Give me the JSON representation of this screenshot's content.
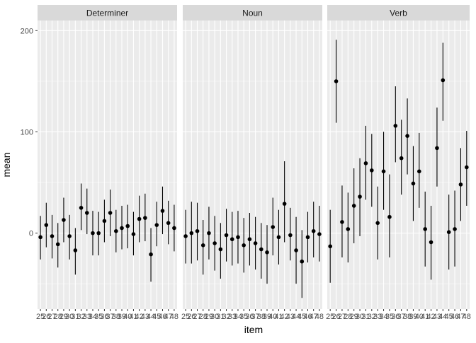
{
  "chart_data": {
    "type": "scatter",
    "subtype": "pointrange-facet",
    "xlabel": "item",
    "ylabel": "mean",
    "x_ticks": [
      "25",
      "26",
      "27",
      "28",
      "29",
      "30",
      "31",
      "32",
      "33",
      "34",
      "35",
      "36",
      "37",
      "38",
      "39",
      "40",
      "41",
      "42",
      "43",
      "44",
      "45",
      "46",
      "47",
      "48"
    ],
    "y_ticks": [
      0,
      100,
      200
    ],
    "ylim": [
      -75,
      210
    ],
    "grid": true,
    "colors": {
      "panel": "#ebebeb",
      "grid_major": "#ffffff",
      "strip": "#d9d9d9",
      "point": "#000000"
    },
    "panels": [
      {
        "label": "Determiner",
        "points": [
          {
            "x": "25",
            "mean": -4,
            "lo": -26,
            "hi": 17
          },
          {
            "x": "26",
            "mean": 8,
            "lo": -14,
            "hi": 30
          },
          {
            "x": "27",
            "mean": -3,
            "lo": -25,
            "hi": 18
          },
          {
            "x": "28",
            "mean": -11,
            "lo": -34,
            "hi": 10
          },
          {
            "x": "29",
            "mean": 13,
            "lo": -9,
            "hi": 35
          },
          {
            "x": "30",
            "mean": -3,
            "lo": -26,
            "hi": 18
          },
          {
            "x": "31",
            "mean": -17,
            "lo": -41,
            "hi": 5
          },
          {
            "x": "32",
            "mean": 25,
            "lo": 3,
            "hi": 49
          },
          {
            "x": "33",
            "mean": 20,
            "lo": -1,
            "hi": 44
          },
          {
            "x": "34",
            "mean": 0,
            "lo": -22,
            "hi": 22
          },
          {
            "x": "35",
            "mean": 0,
            "lo": -22,
            "hi": 21
          },
          {
            "x": "36",
            "mean": 12,
            "lo": -9,
            "hi": 33
          },
          {
            "x": "37",
            "mean": 20,
            "lo": -3,
            "hi": 43
          },
          {
            "x": "38",
            "mean": 2,
            "lo": -19,
            "hi": 23
          },
          {
            "x": "39",
            "mean": 5,
            "lo": -16,
            "hi": 27
          },
          {
            "x": "40",
            "mean": 7,
            "lo": -15,
            "hi": 28
          },
          {
            "x": "41",
            "mean": -1,
            "lo": -22,
            "hi": 21
          },
          {
            "x": "42",
            "mean": 14,
            "lo": -9,
            "hi": 37
          },
          {
            "x": "43",
            "mean": 15,
            "lo": -8,
            "hi": 39
          },
          {
            "x": "44",
            "mean": -21,
            "lo": -48,
            "hi": 5
          },
          {
            "x": "45",
            "mean": 8,
            "lo": -13,
            "hi": 31
          },
          {
            "x": "46",
            "mean": 22,
            "lo": -1,
            "hi": 46
          },
          {
            "x": "47",
            "mean": 10,
            "lo": -11,
            "hi": 32
          },
          {
            "x": "48",
            "mean": 5,
            "lo": -18,
            "hi": 28
          }
        ]
      },
      {
        "label": "Noun",
        "points": [
          {
            "x": "25",
            "mean": -3,
            "lo": -30,
            "hi": 23
          },
          {
            "x": "26",
            "mean": 0,
            "lo": -30,
            "hi": 31
          },
          {
            "x": "27",
            "mean": 2,
            "lo": -27,
            "hi": 30
          },
          {
            "x": "28",
            "mean": -12,
            "lo": -41,
            "hi": 13
          },
          {
            "x": "29",
            "mean": 0,
            "lo": -26,
            "hi": 26
          },
          {
            "x": "30",
            "mean": -10,
            "lo": -37,
            "hi": 17
          },
          {
            "x": "31",
            "mean": -16,
            "lo": -45,
            "hi": 10
          },
          {
            "x": "32",
            "mean": -2,
            "lo": -28,
            "hi": 24
          },
          {
            "x": "33",
            "mean": -6,
            "lo": -32,
            "hi": 21
          },
          {
            "x": "34",
            "mean": -4,
            "lo": -30,
            "hi": 22
          },
          {
            "x": "35",
            "mean": -12,
            "lo": -39,
            "hi": 15
          },
          {
            "x": "36",
            "mean": -6,
            "lo": -32,
            "hi": 20
          },
          {
            "x": "37",
            "mean": -10,
            "lo": -36,
            "hi": 16
          },
          {
            "x": "38",
            "mean": -16,
            "lo": -45,
            "hi": 10
          },
          {
            "x": "39",
            "mean": -19,
            "lo": -50,
            "hi": 8
          },
          {
            "x": "40",
            "mean": 6,
            "lo": -22,
            "hi": 35
          },
          {
            "x": "41",
            "mean": -4,
            "lo": -31,
            "hi": 23
          },
          {
            "x": "42",
            "mean": 29,
            "lo": -9,
            "hi": 71
          },
          {
            "x": "43",
            "mean": -2,
            "lo": -27,
            "hi": 25
          },
          {
            "x": "44",
            "mean": -17,
            "lo": -50,
            "hi": 16
          },
          {
            "x": "45",
            "mean": -28,
            "lo": -64,
            "hi": 3
          },
          {
            "x": "46",
            "mean": -4,
            "lo": -29,
            "hi": 21
          },
          {
            "x": "47",
            "mean": 2,
            "lo": -24,
            "hi": 31
          },
          {
            "x": "48",
            "mean": -1,
            "lo": -28,
            "hi": 27
          }
        ]
      },
      {
        "label": "Verb",
        "points": [
          {
            "x": "25",
            "mean": -13,
            "lo": -49,
            "hi": 23
          },
          {
            "x": "26",
            "mean": 150,
            "lo": 109,
            "hi": 191
          },
          {
            "x": "27",
            "mean": 11,
            "lo": -24,
            "hi": 47
          },
          {
            "x": "28",
            "mean": 4,
            "lo": -29,
            "hi": 40
          },
          {
            "x": "29",
            "mean": 27,
            "lo": -10,
            "hi": 64
          },
          {
            "x": "30",
            "mean": 36,
            "lo": -3,
            "hi": 74
          },
          {
            "x": "31",
            "mean": 69,
            "lo": 33,
            "hi": 106
          },
          {
            "x": "32",
            "mean": 62,
            "lo": 26,
            "hi": 98
          },
          {
            "x": "33",
            "mean": 10,
            "lo": -26,
            "hi": 46
          },
          {
            "x": "34",
            "mean": 61,
            "lo": 23,
            "hi": 100
          },
          {
            "x": "35",
            "mean": 16,
            "lo": -24,
            "hi": 58
          },
          {
            "x": "36",
            "mean": 106,
            "lo": 70,
            "hi": 145
          },
          {
            "x": "37",
            "mean": 74,
            "lo": 38,
            "hi": 112
          },
          {
            "x": "38",
            "mean": 96,
            "lo": 58,
            "hi": 133
          },
          {
            "x": "39",
            "mean": 49,
            "lo": 12,
            "hi": 86
          },
          {
            "x": "40",
            "mean": 61,
            "lo": 25,
            "hi": 99
          },
          {
            "x": "41",
            "mean": 4,
            "lo": -33,
            "hi": 41
          },
          {
            "x": "42",
            "mean": -9,
            "lo": -46,
            "hi": 27
          },
          {
            "x": "43",
            "mean": 84,
            "lo": 46,
            "hi": 124
          },
          {
            "x": "44",
            "mean": 151,
            "lo": 111,
            "hi": 188
          },
          {
            "x": "45",
            "mean": 1,
            "lo": -36,
            "hi": 38
          },
          {
            "x": "46",
            "mean": 4,
            "lo": -33,
            "hi": 42
          },
          {
            "x": "47",
            "mean": 48,
            "lo": 12,
            "hi": 84
          },
          {
            "x": "48",
            "mean": 65,
            "lo": 27,
            "hi": 101
          }
        ]
      }
    ]
  }
}
